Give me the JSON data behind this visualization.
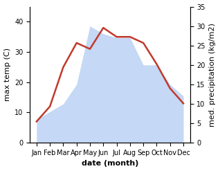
{
  "months": [
    "Jan",
    "Feb",
    "Mar",
    "Apr",
    "May",
    "Jun",
    "Jul",
    "Aug",
    "Sep",
    "Oct",
    "Nov",
    "Dec"
  ],
  "temperature": [
    7,
    12,
    25,
    33,
    31,
    38,
    35,
    35,
    33,
    26,
    18,
    13
  ],
  "precipitation": [
    6,
    8,
    10,
    15,
    30,
    28,
    27,
    27,
    20,
    20,
    15,
    12
  ],
  "temp_color": "#c0392b",
  "precip_color": "#c5d8f5",
  "title": "",
  "xlabel": "date (month)",
  "ylabel_left": "max temp (C)",
  "ylabel_right": "med. precipitation (kg/m2)",
  "ylim_left": [
    0,
    45
  ],
  "ylim_right": [
    0,
    35
  ],
  "yticks_left": [
    0,
    10,
    20,
    30,
    40
  ],
  "yticks_right": [
    0,
    5,
    10,
    15,
    20,
    25,
    30,
    35
  ],
  "background_color": "#ffffff",
  "temp_linewidth": 1.8,
  "xlabel_fontsize": 8,
  "ylabel_fontsize": 8,
  "tick_fontsize": 7
}
